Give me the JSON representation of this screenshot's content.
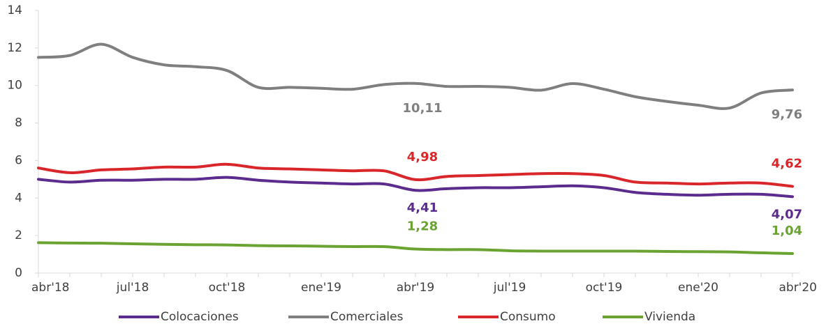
{
  "chart_data": {
    "type": "line",
    "categories": [
      "abr'18",
      null,
      null,
      "jul'18",
      null,
      null,
      "oct'18",
      null,
      null,
      "ene'19",
      null,
      null,
      "abr'19",
      null,
      null,
      "jul'19",
      null,
      null,
      "oct'19",
      null,
      null,
      "ene'20",
      null,
      null,
      "abr'20"
    ],
    "series": [
      {
        "name": "Colocaciones",
        "color": "#5b2c8d",
        "values": [
          5.0,
          4.85,
          4.95,
          4.95,
          5.0,
          5.0,
          5.1,
          4.95,
          4.85,
          4.8,
          4.75,
          4.75,
          4.41,
          4.5,
          4.55,
          4.55,
          4.6,
          4.65,
          4.55,
          4.3,
          4.2,
          4.15,
          4.2,
          4.2,
          4.07
        ],
        "value_labels": [
          null,
          null,
          null,
          null,
          null,
          null,
          null,
          null,
          null,
          null,
          null,
          null,
          "4,41",
          null,
          null,
          null,
          null,
          null,
          null,
          null,
          null,
          null,
          null,
          null,
          "4,07"
        ]
      },
      {
        "name": "Comerciales",
        "color": "#7f7f7f",
        "values": [
          11.5,
          11.6,
          12.2,
          11.5,
          11.1,
          11.0,
          10.8,
          9.9,
          9.9,
          9.85,
          9.8,
          10.05,
          10.11,
          9.95,
          9.95,
          9.9,
          9.75,
          10.1,
          9.8,
          9.4,
          9.15,
          8.95,
          8.8,
          9.6,
          9.76
        ],
        "value_labels": [
          null,
          null,
          null,
          null,
          null,
          null,
          null,
          null,
          null,
          null,
          null,
          null,
          "10,11",
          null,
          null,
          null,
          null,
          null,
          null,
          null,
          null,
          null,
          null,
          null,
          "9,76"
        ]
      },
      {
        "name": "Consumo",
        "color": "#d9262a",
        "values": [
          5.6,
          5.35,
          5.5,
          5.55,
          5.65,
          5.65,
          5.8,
          5.6,
          5.55,
          5.5,
          5.45,
          5.45,
          4.98,
          5.15,
          5.2,
          5.25,
          5.3,
          5.3,
          5.2,
          4.85,
          4.8,
          4.75,
          4.8,
          4.8,
          4.62
        ],
        "value_labels": [
          null,
          null,
          null,
          null,
          null,
          null,
          null,
          null,
          null,
          null,
          null,
          null,
          "4,98",
          null,
          null,
          null,
          null,
          null,
          null,
          null,
          null,
          null,
          null,
          null,
          "4,62"
        ]
      },
      {
        "name": "Vivienda",
        "color": "#6aa332",
        "values": [
          1.62,
          1.6,
          1.59,
          1.56,
          1.53,
          1.51,
          1.5,
          1.46,
          1.45,
          1.43,
          1.41,
          1.41,
          1.28,
          1.25,
          1.25,
          1.19,
          1.17,
          1.17,
          1.17,
          1.17,
          1.15,
          1.14,
          1.13,
          1.08,
          1.04
        ],
        "value_labels": [
          null,
          null,
          null,
          null,
          null,
          null,
          null,
          null,
          null,
          null,
          null,
          null,
          "1,28",
          null,
          null,
          null,
          null,
          null,
          null,
          null,
          null,
          null,
          null,
          null,
          "1,04"
        ]
      }
    ],
    "ylim": [
      0,
      14
    ],
    "yticks": [
      0,
      2,
      4,
      6,
      8,
      10,
      12,
      14
    ],
    "grid": false,
    "legend": "bottom"
  }
}
